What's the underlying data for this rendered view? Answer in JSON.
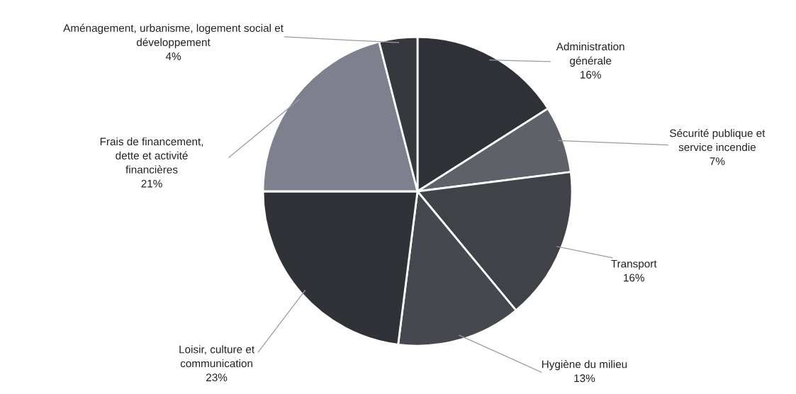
{
  "chart_data": {
    "type": "pie",
    "categories": [
      "Administration\ngénérale",
      "Sécurité publique et\nservice incendie",
      "Transport",
      "Hygiène du milieu",
      "Loisir, culture et\ncommunication",
      "Frais de financement,\ndette et activité\nfinancières",
      "Aménagement, urbanisme, logement social et\ndéveloppement"
    ],
    "values": [
      16,
      7,
      16,
      13,
      23,
      21,
      4
    ],
    "colors": [
      "#2f3136",
      "#5f6169",
      "#404248",
      "#46484f",
      "#303237",
      "#7e808d",
      "#36383d"
    ],
    "value_labels": [
      "16%",
      "7%",
      "16%",
      "13%",
      "23%",
      "21%",
      "4%"
    ]
  }
}
